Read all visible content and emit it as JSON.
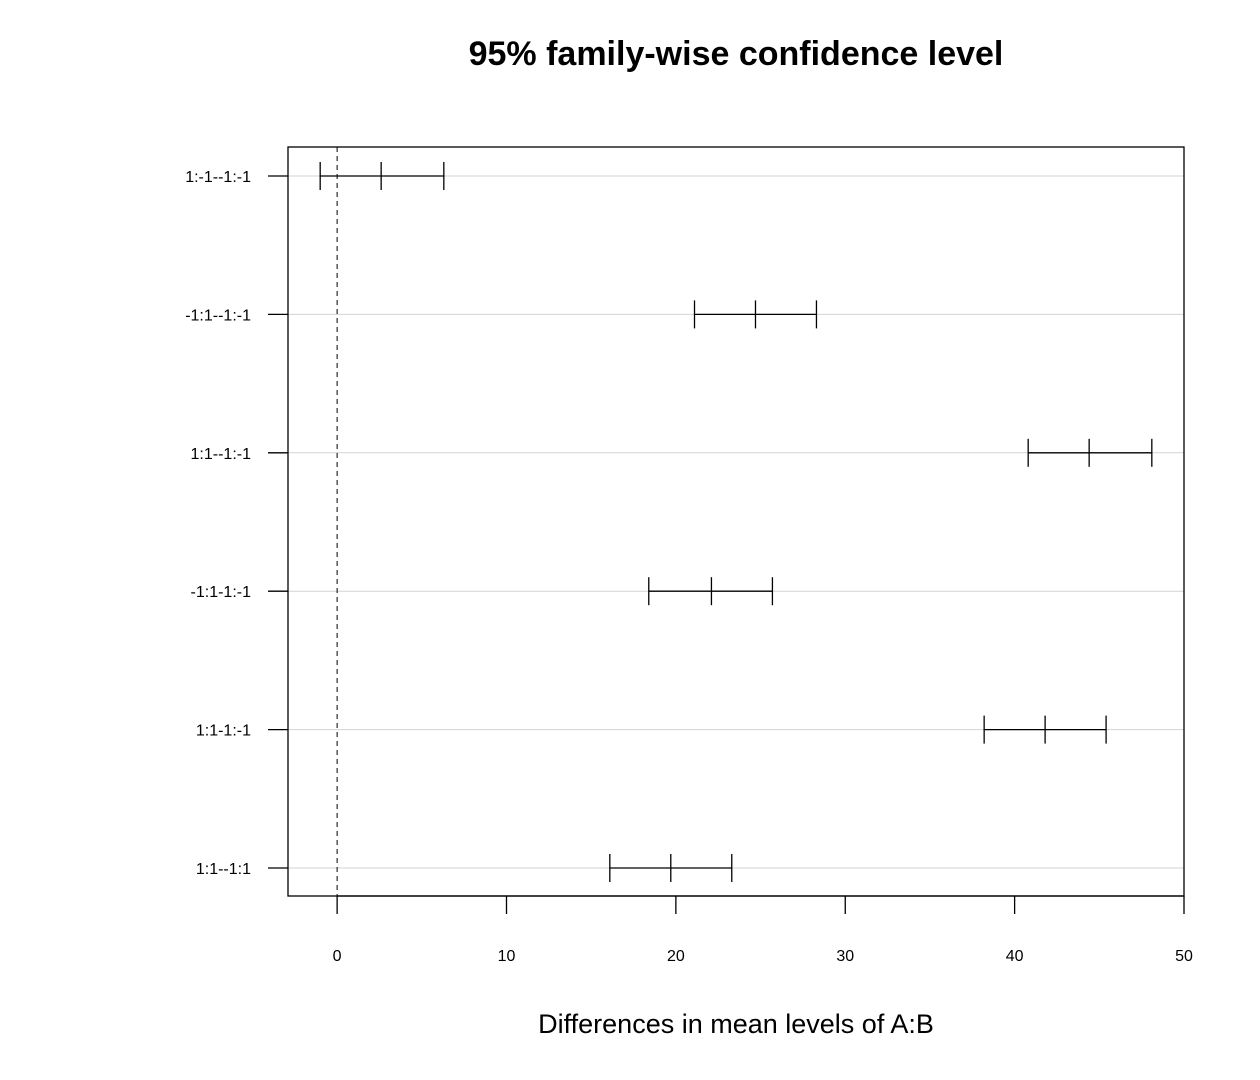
{
  "chart_data": {
    "type": "scatter",
    "title": "95% family-wise confidence level",
    "xlabel": "Differences in mean levels of A:B",
    "ylabel": "",
    "xlim": [
      -2.9,
      50.0
    ],
    "x_ticks": [
      0,
      10,
      20,
      30,
      40,
      50
    ],
    "grid": "horizontal lines at each comparison",
    "reference_line": {
      "x": 0,
      "style": "dashed"
    },
    "intervals": [
      {
        "label": "1:-1--1:-1",
        "lwr": -1.0,
        "diff": 2.6,
        "upr": 6.3
      },
      {
        "label": "-1:1--1:-1",
        "lwr": 21.1,
        "diff": 24.7,
        "upr": 28.3
      },
      {
        "label": "1:1--1:-1",
        "lwr": 40.8,
        "diff": 44.4,
        "upr": 48.1
      },
      {
        "label": "-1:1-1:-1",
        "lwr": 18.4,
        "diff": 22.1,
        "upr": 25.7
      },
      {
        "label": "1:1-1:-1",
        "lwr": 38.2,
        "diff": 41.8,
        "upr": 45.4
      },
      {
        "label": "1:1--1:1",
        "lwr": 16.1,
        "diff": 19.7,
        "upr": 23.3
      }
    ]
  }
}
